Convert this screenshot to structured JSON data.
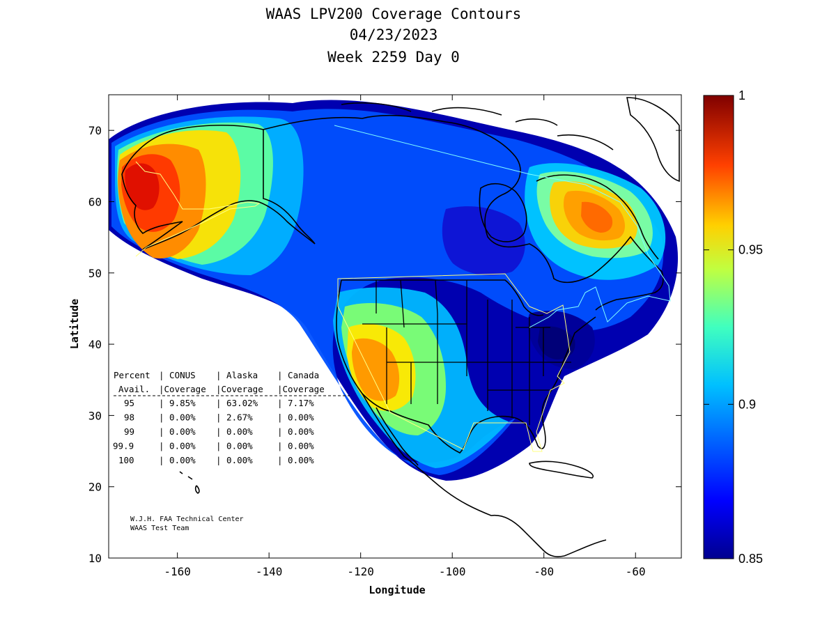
{
  "title": {
    "line1": "WAAS LPV200 Coverage Contours",
    "line2": "04/23/2023",
    "line3": "Week 2259 Day 0"
  },
  "axes": {
    "xlabel": "Longitude",
    "ylabel": "Latitude",
    "xlim": [
      -175,
      -50
    ],
    "ylim": [
      10,
      75
    ],
    "xticks": [
      -160,
      -140,
      -120,
      -100,
      -80,
      -60
    ],
    "yticks": [
      10,
      20,
      30,
      40,
      50,
      60,
      70
    ],
    "xtick_labels": [
      "-160",
      "-140",
      "-120",
      "-100",
      "-80",
      "-60"
    ],
    "ytick_labels": [
      "10",
      "20",
      "30",
      "40",
      "50",
      "60",
      "70"
    ]
  },
  "colorbar": {
    "min": 0.85,
    "max": 1.0,
    "ticks": [
      0.85,
      0.9,
      0.95,
      1.0
    ],
    "tick_labels": [
      "0.85",
      "0.9",
      "0.95",
      "1"
    ],
    "colors": [
      "#00008f",
      "#0000ff",
      "#0080ff",
      "#00ffff",
      "#80ff80",
      "#ffff00",
      "#ff8000",
      "#ff0000",
      "#800000"
    ]
  },
  "coverage_table": {
    "header1": [
      "Percent",
      "CONUS",
      "Alaska",
      "Canada"
    ],
    "header2": [
      "Avail.",
      "Coverage",
      "Coverage",
      "Coverage"
    ],
    "rows": [
      [
        "95",
        "9.85%",
        "63.02%",
        "7.17%"
      ],
      [
        "98",
        "0.00%",
        "2.67%",
        "0.00%"
      ],
      [
        "99",
        "0.00%",
        "0.00%",
        "0.00%"
      ],
      [
        "99.9",
        "0.00%",
        "0.00%",
        "0.00%"
      ],
      [
        "100",
        "0.00%",
        "0.00%",
        "0.00%"
      ]
    ]
  },
  "credit": {
    "line1": "W.J.H. FAA Technical Center",
    "line2": "WAAS Test Team"
  }
}
